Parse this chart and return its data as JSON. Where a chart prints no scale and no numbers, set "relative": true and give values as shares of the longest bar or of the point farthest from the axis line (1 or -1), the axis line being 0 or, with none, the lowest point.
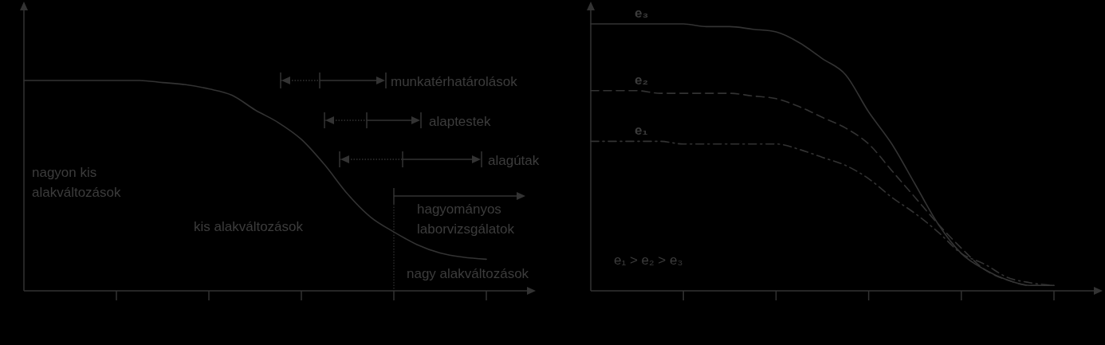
{
  "chart_data": [
    {
      "type": "line",
      "relative": true,
      "categories": [
        null,
        null,
        null,
        null,
        null,
        null,
        null,
        null,
        null,
        null,
        null,
        null,
        null,
        null,
        null,
        null,
        null,
        null,
        null,
        null,
        null
      ],
      "series": [
        {
          "color": "#333333",
          "values": [
            1,
            1,
            1,
            1,
            1,
            1,
            0.99,
            0.98,
            0.96,
            0.93,
            0.86,
            0.8,
            0.72,
            0.6,
            0.46,
            0.35,
            0.28,
            0.22,
            0.18,
            0.16,
            0.15
          ]
        }
      ],
      "annotations": [
        "nagyon kis\nalakváltozások",
        "kis alakváltozások",
        "nagy alakváltozások",
        "munkatérhatárolások",
        "alaptestek",
        "alagútak",
        "hagyományos\nlaborvizsgálatok"
      ]
    },
    {
      "type": "line",
      "relative": true,
      "categories": [
        null,
        null,
        null,
        null,
        null,
        null,
        null,
        null,
        null,
        null,
        null,
        null,
        null,
        null,
        null,
        null,
        null,
        null,
        null,
        null,
        null
      ],
      "series": [
        {
          "name": "e₃",
          "color": "#333333",
          "line_style": "solid",
          "values": [
            1,
            1,
            1,
            1,
            1,
            0.99,
            0.99,
            0.98,
            0.97,
            0.93,
            0.87,
            0.81,
            0.67,
            0.55,
            0.4,
            0.25,
            0.14,
            0.08,
            0.04,
            0.02,
            0.02
          ]
        },
        {
          "name": "e₂",
          "color": "#333333",
          "line_style": "dashed",
          "values": [
            0.75,
            0.75,
            0.75,
            0.74,
            0.74,
            0.74,
            0.74,
            0.73,
            0.72,
            0.69,
            0.65,
            0.61,
            0.55,
            0.45,
            0.35,
            0.25,
            0.16,
            0.08,
            0.04,
            0.02,
            0.02
          ]
        },
        {
          "name": "e₁",
          "color": "#333333",
          "line_style": "dashdot",
          "values": [
            0.56,
            0.56,
            0.56,
            0.56,
            0.55,
            0.55,
            0.55,
            0.55,
            0.55,
            0.53,
            0.5,
            0.47,
            0.42,
            0.35,
            0.29,
            0.22,
            0.14,
            0.1,
            0.05,
            0.03,
            0.02
          ]
        }
      ],
      "annotations": [
        "e₁ > e₂ > e₃"
      ]
    }
  ]
}
